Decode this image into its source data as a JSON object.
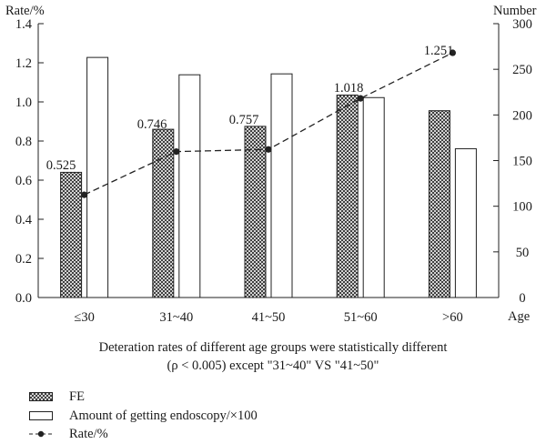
{
  "chart_data": {
    "type": "bar",
    "categories": [
      "≤30",
      "31~40",
      "41~50",
      "51~60",
      ">60"
    ],
    "series": [
      {
        "name": "FE",
        "axis": "left",
        "values": [
          0.64,
          0.86,
          0.875,
          1.035,
          0.955
        ],
        "pattern": "crosshatch"
      },
      {
        "name": "Amount of getting endoscopy/×100",
        "axis": "right",
        "values": [
          263,
          244,
          245,
          219,
          163
        ],
        "pattern": "open"
      },
      {
        "name": "Rate/%",
        "axis": "left",
        "type": "line",
        "style": "dashed",
        "marker": "filled-circle",
        "values": [
          0.525,
          0.746,
          0.757,
          1.018,
          1.251
        ],
        "data_labels": [
          "0.525",
          "0.746",
          "0.757",
          "1.018",
          "1.251"
        ]
      }
    ],
    "left_axis": {
      "label": "Rate/%",
      "range": [
        0,
        1.4
      ],
      "ticks": [
        "0.0",
        "0.2",
        "0.4",
        "0.6",
        "0.8",
        "1.0",
        "1.2",
        "1.4"
      ]
    },
    "right_axis": {
      "label": "Number",
      "range": [
        0,
        300
      ],
      "ticks": [
        "0",
        "50",
        "100",
        "150",
        "200",
        "250",
        "300"
      ]
    },
    "xlabel": "Age",
    "grid": false,
    "legend_position": "bottom-left",
    "caption": [
      "Deteration rates of different age groups were statistically different",
      "(ρ < 0.005) except \"31~40\" VS \"41~50\""
    ]
  }
}
